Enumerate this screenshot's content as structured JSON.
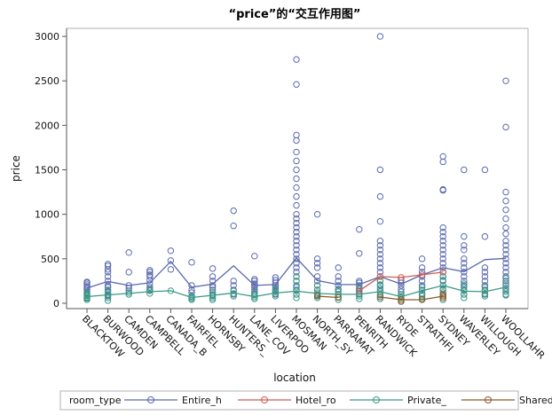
{
  "chart_data": {
    "type": "line",
    "title": "“price”的“交互作用图”",
    "xlabel": "location",
    "ylabel": "price",
    "ylim": [
      -60,
      3090
    ],
    "yticks": [
      0,
      500,
      1000,
      1500,
      2000,
      2500,
      3000
    ],
    "grid": false,
    "legend_position": "bottom",
    "categories": [
      "BLACKTOW",
      "BURWOOD",
      "CAMDEN",
      "CAMPBELL",
      "CANADA_B",
      "FAIRFIEL",
      "HORNSBY",
      "HUNTERS_",
      "LANE_COV",
      "LIVERPOO",
      "MOSMAN",
      "NORTH_SY",
      "PARRAMAT",
      "PENRITH",
      "RANDWICK",
      "RYDE",
      "STRATHFI",
      "SYDNEY",
      "WAVERLEY",
      "WILLOUGH",
      "WOOLLAHR"
    ],
    "legend": {
      "title": "room_type",
      "entries": [
        "Entire_h",
        "Hotel_ro",
        "Private_",
        "Shared_r"
      ]
    },
    "series": [
      {
        "name": "Entire_h",
        "color": "#5a6aae",
        "means": [
          170,
          245,
          200,
          230,
          470,
          180,
          215,
          420,
          200,
          210,
          510,
          255,
          210,
          210,
          300,
          215,
          320,
          400,
          355,
          490,
          505
        ],
        "points": [
          [
            0,
            [
              60,
              90,
              110,
              130,
              150,
              170,
              190,
              210,
              230,
              240
            ]
          ],
          [
            1,
            [
              80,
              100,
              130,
              150,
              180,
              200,
              250,
              300,
              350,
              380,
              420,
              440
            ]
          ],
          [
            2,
            [
              140,
              170,
              200,
              350,
              570
            ]
          ],
          [
            3,
            [
              150,
              180,
              220,
              260,
              300,
              320,
              350,
              370
            ]
          ],
          [
            4,
            [
              380,
              480,
              590
            ]
          ],
          [
            5,
            [
              80,
              120,
              150,
              200,
              460
            ]
          ],
          [
            6,
            [
              90,
              120,
              150,
              180,
              200,
              250,
              300,
              390
            ]
          ],
          [
            7,
            [
              100,
              150,
              200,
              250,
              870,
              1040
            ]
          ],
          [
            8,
            [
              100,
              130,
              150,
              180,
              200,
              220,
              250,
              270,
              530
            ]
          ],
          [
            9,
            [
              100,
              130,
              150,
              180,
              200,
              230,
              260,
              290
            ]
          ],
          [
            10,
            [
              100,
              150,
              200,
              250,
              300,
              350,
              400,
              450,
              500,
              550,
              600,
              650,
              700,
              750,
              800,
              850,
              900,
              950,
              1000,
              1100,
              1200,
              1300,
              1400,
              1500,
              1600,
              1700,
              1830,
              1890,
              2460,
              2740
            ]
          ],
          [
            11,
            [
              100,
              150,
              200,
              250,
              300,
              400,
              450,
              500,
              1000
            ]
          ],
          [
            12,
            [
              100,
              150,
              200,
              250,
              300,
              400
            ]
          ],
          [
            13,
            [
              100,
              130,
              160,
              200,
              230,
              250,
              560,
              830
            ]
          ],
          [
            14,
            [
              100,
              150,
              200,
              250,
              300,
              350,
              400,
              450,
              500,
              550,
              600,
              650,
              700,
              920,
              1200,
              1500,
              3000
            ]
          ],
          [
            15,
            [
              100,
              130,
              160,
              200,
              230,
              260
            ]
          ],
          [
            16,
            [
              100,
              150,
              200,
              250,
              300,
              350,
              400,
              500
            ]
          ],
          [
            17,
            [
              100,
              150,
              200,
              250,
              300,
              350,
              400,
              450,
              500,
              550,
              600,
              650,
              700,
              750,
              800,
              850,
              1270,
              1280,
              1590,
              1650
            ]
          ],
          [
            18,
            [
              100,
              150,
              200,
              250,
              300,
              350,
              400,
              450,
              500,
              600,
              650,
              750,
              1500
            ]
          ],
          [
            19,
            [
              100,
              150,
              200,
              250,
              300,
              350,
              400,
              750,
              1500
            ]
          ],
          [
            20,
            [
              100,
              150,
              200,
              250,
              300,
              350,
              400,
              450,
              500,
              550,
              600,
              650,
              700,
              780,
              850,
              950,
              1050,
              1150,
              1250,
              1980,
              2500
            ]
          ]
        ]
      },
      {
        "name": "Hotel_ro",
        "color": "#cb5d55",
        "means": [
          null,
          null,
          null,
          null,
          null,
          null,
          null,
          null,
          null,
          null,
          null,
          null,
          null,
          140,
          300,
          290,
          320,
          350,
          null,
          null,
          null
        ],
        "points": [
          [
            13,
            [
              140
            ]
          ],
          [
            14,
            [
              300
            ]
          ],
          [
            15,
            [
              290
            ]
          ],
          [
            16,
            [
              320
            ]
          ],
          [
            17,
            [
              350
            ]
          ]
        ]
      },
      {
        "name": "Private_",
        "color": "#3a9a84",
        "means": [
          75,
          95,
          110,
          130,
          140,
          65,
          90,
          115,
          75,
          115,
          135,
          110,
          100,
          100,
          130,
          75,
          140,
          200,
          135,
          130,
          180
        ],
        "points": [
          [
            0,
            [
              40,
              55,
              70,
              85,
              100,
              120
            ]
          ],
          [
            1,
            [
              30,
              60,
              90,
              120,
              150
            ]
          ],
          [
            2,
            [
              100,
              120
            ]
          ],
          [
            3,
            [
              110,
              140,
              160
            ]
          ],
          [
            4,
            [
              140
            ]
          ],
          [
            5,
            [
              40,
              55,
              70,
              80
            ]
          ],
          [
            6,
            [
              40,
              60,
              80,
              100,
              120
            ]
          ],
          [
            7,
            [
              80,
              110,
              140
            ]
          ],
          [
            8,
            [
              50,
              70,
              90,
              110
            ]
          ],
          [
            9,
            [
              80,
              110,
              140,
              160
            ]
          ],
          [
            10,
            [
              60,
              100,
              140,
              180,
              250,
              300
            ]
          ],
          [
            11,
            [
              60,
              90,
              120,
              150,
              200
            ]
          ],
          [
            12,
            [
              40,
              70,
              100,
              130,
              160
            ]
          ],
          [
            13,
            [
              50,
              80,
              110,
              140,
              170
            ]
          ],
          [
            14,
            [
              50,
              90,
              130,
              170,
              210,
              250
            ]
          ],
          [
            15,
            [
              20,
              40,
              60,
              80,
              100
            ]
          ],
          [
            16,
            [
              50,
              80,
              110,
              150,
              180
            ]
          ],
          [
            17,
            [
              40,
              80,
              120,
              160,
              200,
              260,
              300,
              350
            ]
          ],
          [
            18,
            [
              60,
              100,
              140,
              180,
              220
            ]
          ],
          [
            19,
            [
              80,
              110,
              140,
              180
            ]
          ],
          [
            20,
            [
              90,
              130,
              170,
              220,
              280
            ]
          ]
        ]
      },
      {
        "name": "Shared_r",
        "color": "#8a5a2a",
        "means": [
          null,
          null,
          null,
          null,
          null,
          null,
          null,
          null,
          null,
          null,
          null,
          80,
          65,
          null,
          70,
          40,
          40,
          80,
          null,
          null,
          null
        ],
        "points": [
          [
            11,
            [
              80
            ]
          ],
          [
            12,
            [
              65
            ]
          ],
          [
            14,
            [
              70
            ]
          ],
          [
            15,
            [
              20,
              40
            ]
          ],
          [
            16,
            [
              40
            ]
          ],
          [
            17,
            [
              60,
              80,
              100
            ]
          ]
        ]
      }
    ]
  }
}
